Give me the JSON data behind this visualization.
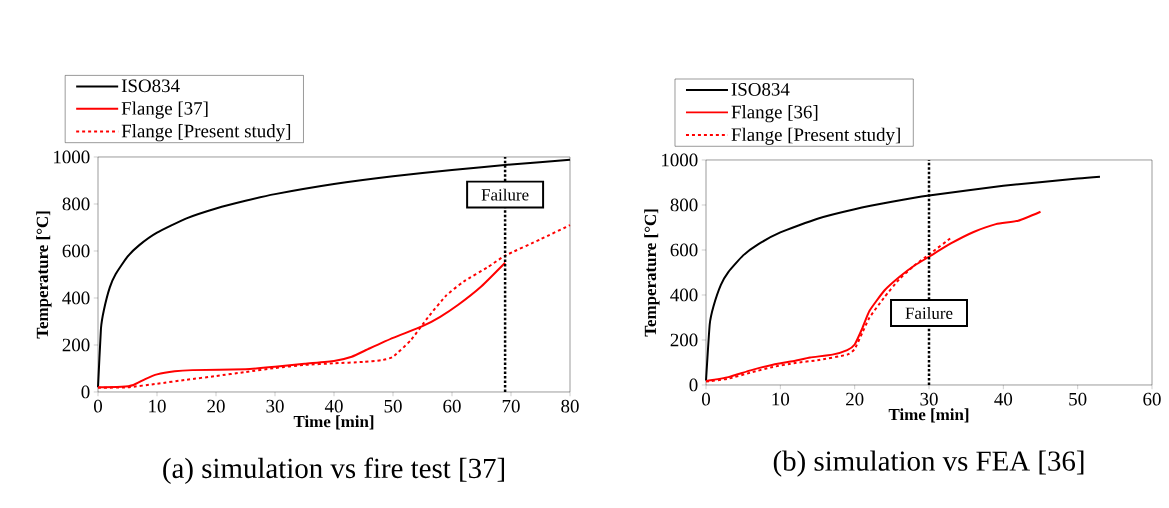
{
  "chart_data": [
    {
      "type": "line",
      "xlabel": "Time [min]",
      "ylabel": "Temperature [°C]",
      "xlim": [
        0,
        80
      ],
      "ylim": [
        0,
        1000
      ],
      "xticks": [
        0,
        10,
        20,
        30,
        40,
        50,
        60,
        70,
        80
      ],
      "yticks": [
        0,
        200,
        400,
        600,
        800,
        1000
      ],
      "legend": "top left",
      "series": [
        {
          "name": "ISO834",
          "color": "#000000",
          "line_style": "solid",
          "x": [
            0,
            0.5,
            1,
            2,
            3,
            5,
            7,
            10,
            15,
            20,
            25,
            30,
            40,
            50,
            60,
            70,
            80
          ],
          "values": [
            20,
            270,
            349,
            445,
            502,
            576,
            625,
            678,
            739,
            781,
            814,
            842,
            885,
            918,
            945,
            968,
            988
          ]
        },
        {
          "name": "Flange [37]",
          "color": "#ff0000",
          "line_style": "solid",
          "x": [
            0,
            4,
            6,
            8,
            10,
            13,
            16,
            25,
            30,
            35,
            40,
            43,
            46,
            50,
            55,
            58,
            61,
            65,
            69
          ],
          "values": [
            20,
            22,
            30,
            55,
            75,
            88,
            93,
            97,
            107,
            120,
            132,
            150,
            185,
            230,
            280,
            320,
            370,
            450,
            550
          ]
        },
        {
          "name": "Flange [Present study]",
          "color": "#ff0000",
          "line_style": "dashed",
          "x": [
            0,
            5,
            10,
            15,
            20,
            25,
            30,
            35,
            40,
            45,
            48,
            50,
            53,
            56,
            59,
            62,
            66,
            69,
            75,
            80
          ],
          "values": [
            18,
            20,
            35,
            52,
            68,
            85,
            102,
            115,
            122,
            128,
            135,
            150,
            220,
            320,
            410,
            470,
            530,
            580,
            650,
            710
          ]
        }
      ],
      "ref_lines": [
        {
          "axis": "x",
          "value": 69,
          "label": "Failure",
          "color": "#000000",
          "line_style": "dotted"
        }
      ],
      "annotations": [
        "(a) simulation vs fire test [37]"
      ]
    },
    {
      "type": "line",
      "xlabel": "Time [min]",
      "ylabel": "Temperature [°C]",
      "xlim": [
        0,
        60
      ],
      "ylim": [
        0,
        1000
      ],
      "xticks": [
        0,
        10,
        20,
        30,
        40,
        50,
        60
      ],
      "yticks": [
        0,
        200,
        400,
        600,
        800,
        1000
      ],
      "legend": "top left",
      "series": [
        {
          "name": "ISO834",
          "color": "#000000",
          "line_style": "solid",
          "x": [
            0,
            0.5,
            1,
            2,
            3,
            5,
            7,
            10,
            15,
            20,
            25,
            30,
            40,
            50,
            53
          ],
          "values": [
            20,
            270,
            349,
            445,
            502,
            576,
            625,
            678,
            739,
            781,
            814,
            842,
            885,
            918,
            926
          ]
        },
        {
          "name": "Flange [36]",
          "color": "#ff0000",
          "line_style": "solid",
          "x": [
            0,
            3,
            6,
            9,
            12,
            14,
            17,
            19,
            20,
            21,
            22,
            24,
            26,
            28,
            30,
            33,
            36,
            39,
            42,
            45
          ],
          "values": [
            18,
            35,
            65,
            90,
            108,
            122,
            135,
            155,
            180,
            250,
            330,
            420,
            480,
            530,
            570,
            630,
            680,
            715,
            730,
            770
          ]
        },
        {
          "name": "Flange [Present study]",
          "color": "#ff0000",
          "line_style": "dashed",
          "x": [
            0,
            3,
            6,
            9,
            12,
            15,
            19,
            20,
            21,
            22,
            24,
            26,
            28,
            30,
            33
          ],
          "values": [
            15,
            28,
            55,
            80,
            98,
            110,
            135,
            160,
            230,
            300,
            390,
            470,
            530,
            580,
            655
          ]
        }
      ],
      "ref_lines": [
        {
          "axis": "x",
          "value": 30,
          "label": "Failure",
          "color": "#000000",
          "line_style": "dotted"
        }
      ],
      "annotations": [
        "(b) simulation vs FEA [36]"
      ]
    }
  ]
}
